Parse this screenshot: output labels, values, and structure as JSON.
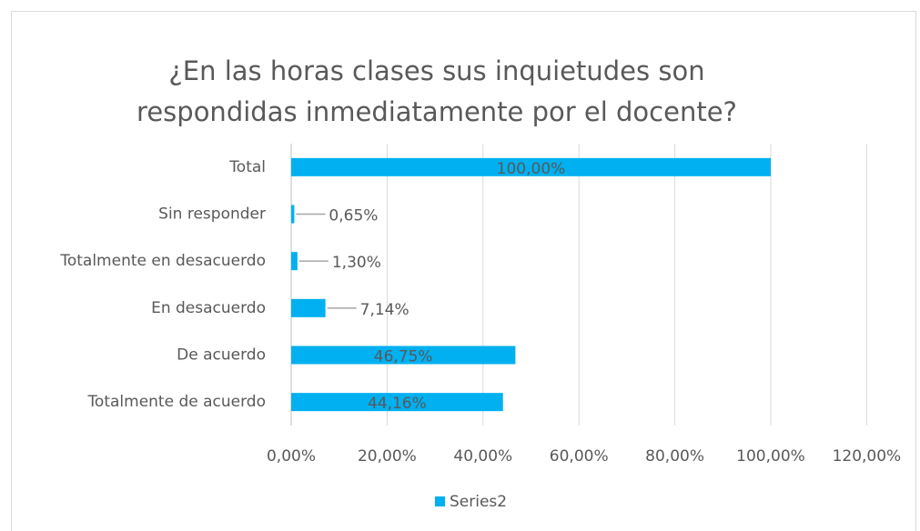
{
  "chart_data": {
    "type": "hbar",
    "title": [
      "¿En las horas clases sus inquietudes son",
      "respondidas inmediatamente por el docente?"
    ],
    "categories": [
      "Total",
      "Sin responder",
      "Totalmente en desacuerdo",
      "En desacuerdo",
      "De acuerdo",
      "Totalmente de acuerdo"
    ],
    "series": [
      {
        "name": "Series2",
        "color": "#00b0f0",
        "values": [
          100,
          0.65,
          1.3,
          7.14,
          46.75,
          44.16
        ],
        "value_labels": [
          "100,00%",
          "0,65%",
          "1,30%",
          "7,14%",
          "46,75%",
          "44,16%"
        ]
      }
    ],
    "xlim": [
      0,
      120
    ],
    "xticks": [
      {
        "value": 0,
        "label": "0,00%"
      },
      {
        "value": 20,
        "label": "20,00%"
      },
      {
        "value": 40,
        "label": "40,00%"
      },
      {
        "value": 60,
        "label": "60,00%"
      },
      {
        "value": 80,
        "label": "80,00%"
      },
      {
        "value": 100,
        "label": "100,00%"
      },
      {
        "value": 120,
        "label": "120,00%"
      }
    ],
    "grid": true,
    "legend": "bottom"
  }
}
